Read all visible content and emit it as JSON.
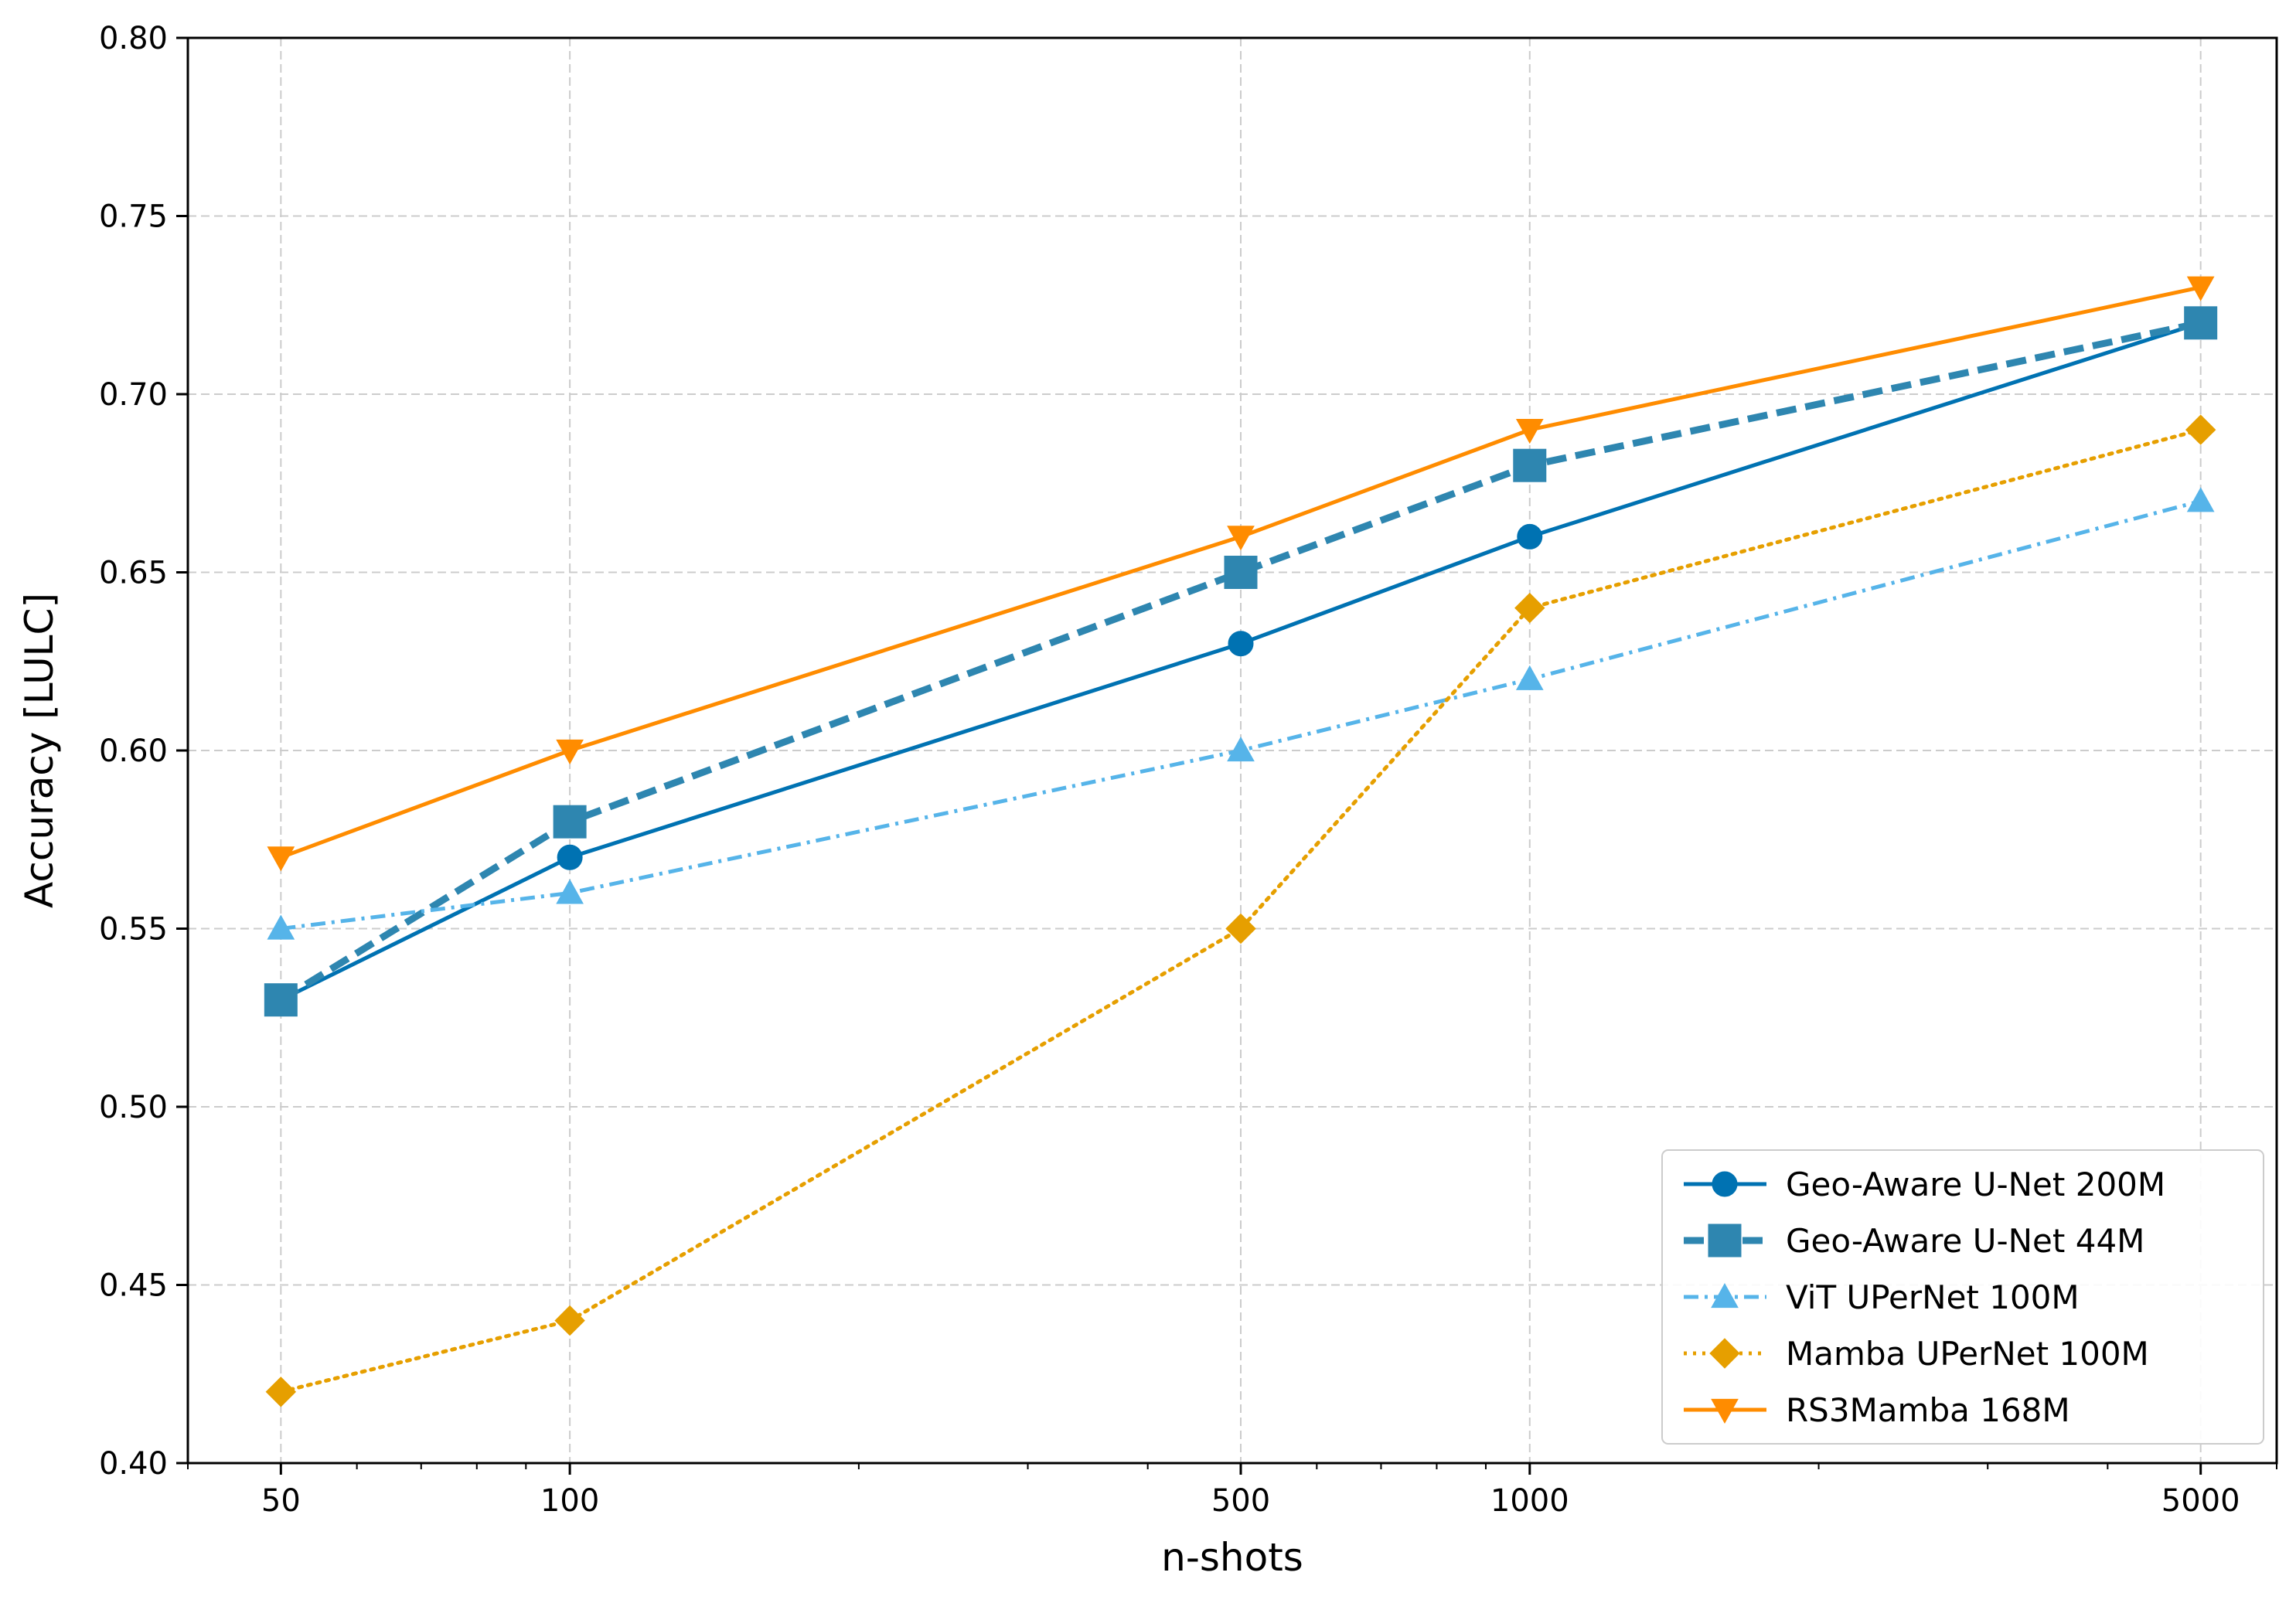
{
  "chart_data": {
    "type": "line",
    "xlabel": "n-shots",
    "ylabel": "Accuracy [LULC]",
    "xscale": "log",
    "xlim": [
      40,
      6000
    ],
    "ylim": [
      0.4,
      0.8
    ],
    "x": [
      50,
      100,
      500,
      1000,
      5000
    ],
    "x_tick_labels": [
      "50",
      "100",
      "500",
      "1000",
      "5000"
    ],
    "y_ticks": [
      0.4,
      0.45,
      0.5,
      0.55,
      0.6,
      0.65,
      0.7,
      0.75,
      0.8
    ],
    "y_tick_labels": [
      "0.40",
      "0.45",
      "0.50",
      "0.55",
      "0.60",
      "0.65",
      "0.70",
      "0.75",
      "0.80"
    ],
    "grid": true,
    "legend_position": "bottom-right",
    "series": [
      {
        "name": "Geo-Aware U-Net 200M",
        "values": [
          0.53,
          0.57,
          0.63,
          0.66,
          0.72
        ],
        "color": "#0072b2",
        "marker": "circle",
        "linestyle": "solid"
      },
      {
        "name": "Geo-Aware U-Net 44M",
        "values": [
          0.53,
          0.58,
          0.65,
          0.68,
          0.72
        ],
        "color": "#2e86b0",
        "marker": "square",
        "linestyle": "dashed"
      },
      {
        "name": "ViT UPerNet 100M",
        "values": [
          0.55,
          0.56,
          0.6,
          0.62,
          0.67
        ],
        "color": "#56b4e9",
        "marker": "triangle-up",
        "linestyle": "dashdot"
      },
      {
        "name": "Mamba UPerNet 100M",
        "values": [
          0.42,
          0.44,
          0.55,
          0.64,
          0.69
        ],
        "color": "#e69f00",
        "marker": "diamond",
        "linestyle": "dotted"
      },
      {
        "name": "RS3Mamba 168M",
        "values": [
          0.57,
          0.6,
          0.66,
          0.69,
          0.73
        ],
        "color": "#ff8c00",
        "marker": "triangle-down",
        "linestyle": "solid"
      }
    ]
  }
}
